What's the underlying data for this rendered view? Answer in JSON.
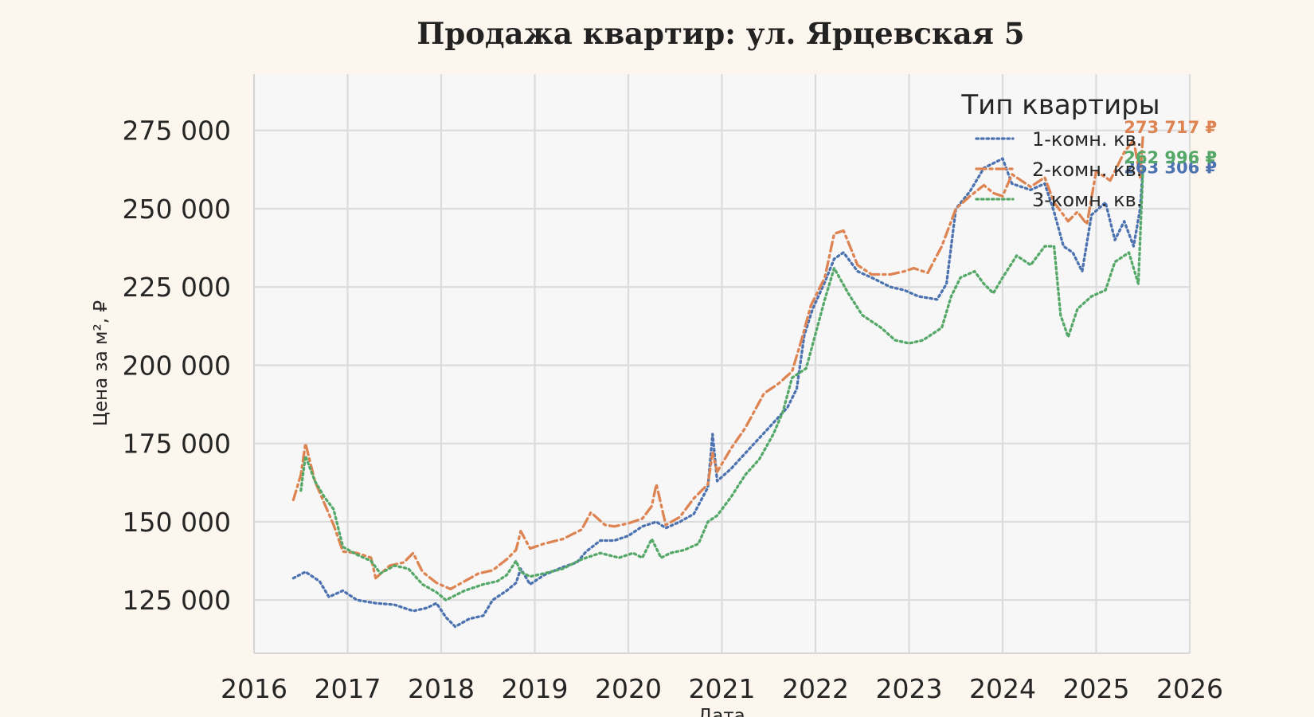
{
  "chart_data": {
    "type": "line",
    "title": "Продажа квартир: ул. Ярцевская 5",
    "xlabel": "Дата",
    "ylabel": "Цена за м², ₽",
    "xlim": [
      2016,
      2026
    ],
    "ylim": [
      108000,
      293000
    ],
    "x_ticks": [
      "2016",
      "2017",
      "2018",
      "2019",
      "2020",
      "2021",
      "2022",
      "2023",
      "2024",
      "2025",
      "2026"
    ],
    "y_ticks": [
      "125 000",
      "150 000",
      "175 000",
      "200 000",
      "225 000",
      "250 000",
      "275 000"
    ],
    "y_tick_values": [
      125000,
      150000,
      175000,
      200000,
      225000,
      250000,
      275000
    ],
    "grid": true,
    "legend": {
      "title": "Тип квартиры",
      "placement": "top-right"
    },
    "series": [
      {
        "name": "1-комн. кв.",
        "color": "#4c72b0",
        "style": "dotted",
        "end_label": "263 306 ₽",
        "points": [
          [
            2016.42,
            132000
          ],
          [
            2016.55,
            134000
          ],
          [
            2016.7,
            131000
          ],
          [
            2016.8,
            126000
          ],
          [
            2016.95,
            128000
          ],
          [
            2017.1,
            125000
          ],
          [
            2017.3,
            124000
          ],
          [
            2017.5,
            123500
          ],
          [
            2017.7,
            121500
          ],
          [
            2017.85,
            122500
          ],
          [
            2017.95,
            124000
          ],
          [
            2018.05,
            119500
          ],
          [
            2018.15,
            116500
          ],
          [
            2018.3,
            119000
          ],
          [
            2018.45,
            120000
          ],
          [
            2018.55,
            125000
          ],
          [
            2018.7,
            128000
          ],
          [
            2018.8,
            130500
          ],
          [
            2018.85,
            135000
          ],
          [
            2018.95,
            130000
          ],
          [
            2019.1,
            133000
          ],
          [
            2019.3,
            135500
          ],
          [
            2019.45,
            137000
          ],
          [
            2019.55,
            140500
          ],
          [
            2019.7,
            144000
          ],
          [
            2019.85,
            144000
          ],
          [
            2020.0,
            145500
          ],
          [
            2020.15,
            148500
          ],
          [
            2020.3,
            150000
          ],
          [
            2020.4,
            148000
          ],
          [
            2020.55,
            150000
          ],
          [
            2020.7,
            152500
          ],
          [
            2020.85,
            161000
          ],
          [
            2020.9,
            178000
          ],
          [
            2020.95,
            163000
          ],
          [
            2021.1,
            167000
          ],
          [
            2021.3,
            173500
          ],
          [
            2021.5,
            180000
          ],
          [
            2021.7,
            186500
          ],
          [
            2021.8,
            192500
          ],
          [
            2021.88,
            209500
          ],
          [
            2021.97,
            218000
          ],
          [
            2022.1,
            226500
          ],
          [
            2022.2,
            234000
          ],
          [
            2022.3,
            236000
          ],
          [
            2022.45,
            230000
          ],
          [
            2022.6,
            228000
          ],
          [
            2022.8,
            225000
          ],
          [
            2022.95,
            224000
          ],
          [
            2023.1,
            222000
          ],
          [
            2023.3,
            221000
          ],
          [
            2023.4,
            226000
          ],
          [
            2023.5,
            250000
          ],
          [
            2023.65,
            255500
          ],
          [
            2023.8,
            263000
          ],
          [
            2024.0,
            266000
          ],
          [
            2024.1,
            258000
          ],
          [
            2024.3,
            256000
          ],
          [
            2024.45,
            258000
          ],
          [
            2024.55,
            249000
          ],
          [
            2024.65,
            238000
          ],
          [
            2024.75,
            236000
          ],
          [
            2024.85,
            230000
          ],
          [
            2024.95,
            248000
          ],
          [
            2025.1,
            252000
          ],
          [
            2025.2,
            240000
          ],
          [
            2025.3,
            246000
          ],
          [
            2025.4,
            238000
          ],
          [
            2025.47,
            250000
          ],
          [
            2025.5,
            263306
          ]
        ]
      },
      {
        "name": "2-комн. кв.",
        "color": "#dd8452",
        "style": "dashdot",
        "end_label": "273 717 ₽",
        "points": [
          [
            2016.42,
            157000
          ],
          [
            2016.5,
            165000
          ],
          [
            2016.55,
            175000
          ],
          [
            2016.65,
            163000
          ],
          [
            2016.75,
            156000
          ],
          [
            2016.85,
            149000
          ],
          [
            2016.95,
            140500
          ],
          [
            2017.1,
            140000
          ],
          [
            2017.25,
            138500
          ],
          [
            2017.3,
            132000
          ],
          [
            2017.45,
            136000
          ],
          [
            2017.6,
            137000
          ],
          [
            2017.7,
            140000
          ],
          [
            2017.8,
            134000
          ],
          [
            2017.95,
            130500
          ],
          [
            2018.1,
            128500
          ],
          [
            2018.25,
            131000
          ],
          [
            2018.4,
            133500
          ],
          [
            2018.55,
            134500
          ],
          [
            2018.7,
            138000
          ],
          [
            2018.8,
            141000
          ],
          [
            2018.85,
            147000
          ],
          [
            2018.95,
            141500
          ],
          [
            2019.1,
            143000
          ],
          [
            2019.3,
            144500
          ],
          [
            2019.5,
            147500
          ],
          [
            2019.6,
            153000
          ],
          [
            2019.75,
            149000
          ],
          [
            2019.85,
            148500
          ],
          [
            2020.0,
            149500
          ],
          [
            2020.15,
            151000
          ],
          [
            2020.25,
            155000
          ],
          [
            2020.3,
            162000
          ],
          [
            2020.4,
            149000
          ],
          [
            2020.55,
            151500
          ],
          [
            2020.7,
            157500
          ],
          [
            2020.85,
            162000
          ],
          [
            2020.9,
            172000
          ],
          [
            2020.95,
            166000
          ],
          [
            2021.1,
            173500
          ],
          [
            2021.25,
            180000
          ],
          [
            2021.45,
            191000
          ],
          [
            2021.6,
            194000
          ],
          [
            2021.75,
            198000
          ],
          [
            2021.85,
            208000
          ],
          [
            2021.95,
            219000
          ],
          [
            2022.1,
            228000
          ],
          [
            2022.2,
            242000
          ],
          [
            2022.3,
            243000
          ],
          [
            2022.45,
            232000
          ],
          [
            2022.6,
            229000
          ],
          [
            2022.8,
            229000
          ],
          [
            2022.95,
            230000
          ],
          [
            2023.05,
            231000
          ],
          [
            2023.2,
            229500
          ],
          [
            2023.35,
            238000
          ],
          [
            2023.5,
            250000
          ],
          [
            2023.65,
            254000
          ],
          [
            2023.8,
            257500
          ],
          [
            2023.9,
            255000
          ],
          [
            2024.0,
            254000
          ],
          [
            2024.1,
            261000
          ],
          [
            2024.3,
            257000
          ],
          [
            2024.45,
            260000
          ],
          [
            2024.55,
            252000
          ],
          [
            2024.7,
            246000
          ],
          [
            2024.8,
            249000
          ],
          [
            2024.9,
            245000
          ],
          [
            2025.0,
            262000
          ],
          [
            2025.15,
            259000
          ],
          [
            2025.3,
            268000
          ],
          [
            2025.4,
            272000
          ],
          [
            2025.47,
            260000
          ],
          [
            2025.5,
            273717
          ]
        ]
      },
      {
        "name": "3-комн. кв.",
        "color": "#55a868",
        "style": "dotted",
        "end_label": "262 996 ₽",
        "points": [
          [
            2016.5,
            160000
          ],
          [
            2016.55,
            171000
          ],
          [
            2016.65,
            163000
          ],
          [
            2016.75,
            158000
          ],
          [
            2016.85,
            154000
          ],
          [
            2016.95,
            142000
          ],
          [
            2017.1,
            139500
          ],
          [
            2017.25,
            137500
          ],
          [
            2017.35,
            133500
          ],
          [
            2017.5,
            136000
          ],
          [
            2017.65,
            135000
          ],
          [
            2017.8,
            130000
          ],
          [
            2017.95,
            127500
          ],
          [
            2018.05,
            125000
          ],
          [
            2018.25,
            128000
          ],
          [
            2018.45,
            130000
          ],
          [
            2018.6,
            131000
          ],
          [
            2018.7,
            133000
          ],
          [
            2018.8,
            137500
          ],
          [
            2018.85,
            134000
          ],
          [
            2018.95,
            132500
          ],
          [
            2019.1,
            133500
          ],
          [
            2019.3,
            135000
          ],
          [
            2019.5,
            138000
          ],
          [
            2019.7,
            140000
          ],
          [
            2019.9,
            138500
          ],
          [
            2020.05,
            140000
          ],
          [
            2020.15,
            138500
          ],
          [
            2020.25,
            144500
          ],
          [
            2020.35,
            138500
          ],
          [
            2020.45,
            140000
          ],
          [
            2020.6,
            141000
          ],
          [
            2020.75,
            143000
          ],
          [
            2020.85,
            150000
          ],
          [
            2020.95,
            152000
          ],
          [
            2021.1,
            158000
          ],
          [
            2021.25,
            165000
          ],
          [
            2021.4,
            170000
          ],
          [
            2021.55,
            178000
          ],
          [
            2021.65,
            185000
          ],
          [
            2021.75,
            196000
          ],
          [
            2021.9,
            199000
          ],
          [
            2022.0,
            210000
          ],
          [
            2022.1,
            221000
          ],
          [
            2022.2,
            231000
          ],
          [
            2022.35,
            223000
          ],
          [
            2022.5,
            216000
          ],
          [
            2022.7,
            212000
          ],
          [
            2022.85,
            208000
          ],
          [
            2023.0,
            207000
          ],
          [
            2023.15,
            208000
          ],
          [
            2023.35,
            212000
          ],
          [
            2023.45,
            222000
          ],
          [
            2023.55,
            228000
          ],
          [
            2023.7,
            230000
          ],
          [
            2023.8,
            226000
          ],
          [
            2023.9,
            223000
          ],
          [
            2024.0,
            228000
          ],
          [
            2024.15,
            235000
          ],
          [
            2024.3,
            232000
          ],
          [
            2024.45,
            238000
          ],
          [
            2024.55,
            238000
          ],
          [
            2024.62,
            216000
          ],
          [
            2024.7,
            209000
          ],
          [
            2024.8,
            218000
          ],
          [
            2024.95,
            222000
          ],
          [
            2025.1,
            224000
          ],
          [
            2025.2,
            233000
          ],
          [
            2025.35,
            236000
          ],
          [
            2025.45,
            226000
          ],
          [
            2025.5,
            262996
          ]
        ]
      }
    ]
  }
}
